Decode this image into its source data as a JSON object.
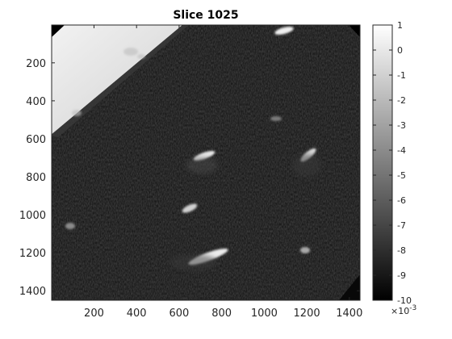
{
  "figure": {
    "title": "Slice 1025"
  },
  "image_axes": {
    "x_ticks": [
      "200",
      "400",
      "600",
      "800",
      "1000",
      "1200",
      "1400"
    ],
    "y_ticks": [
      "200",
      "400",
      "600",
      "800",
      "1000",
      "1200",
      "1400"
    ],
    "x_tick_values": [
      200,
      400,
      600,
      800,
      1000,
      1200,
      1400
    ],
    "y_tick_values": [
      200,
      400,
      600,
      800,
      1000,
      1200,
      1400
    ],
    "x_range": [
      1,
      1450
    ],
    "y_range": [
      1,
      1450
    ],
    "y_direction": "reversed",
    "colormap": "gray"
  },
  "colorbar": {
    "ticks": [
      "1",
      "0",
      "-1",
      "-2",
      "-3",
      "-4",
      "-5",
      "-6",
      "-7",
      "-8",
      "-9",
      "-10"
    ],
    "tick_values": [
      1,
      0,
      -1,
      -2,
      -3,
      -4,
      -5,
      -6,
      -7,
      -8,
      -9,
      -10
    ],
    "range": [
      -10,
      1
    ],
    "exponent_base": "×10",
    "exponent_power": "-3"
  }
}
